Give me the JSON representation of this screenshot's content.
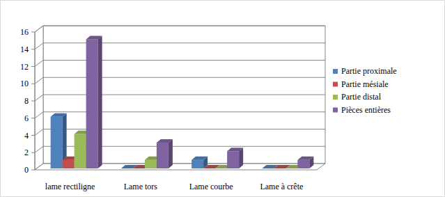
{
  "chart_data": {
    "type": "bar",
    "categories": [
      "lame rectiligne",
      "Lame tors",
      "Lame courbe",
      "Lame à crête"
    ],
    "series": [
      {
        "name": "Partie proximale",
        "color": "#4f81bd",
        "values": [
          6,
          0,
          1,
          0
        ]
      },
      {
        "name": "Partie mésiale",
        "color": "#c0504d",
        "values": [
          1,
          0,
          0,
          0
        ]
      },
      {
        "name": "Partie distal",
        "color": "#9bbb59",
        "values": [
          4,
          1,
          0,
          0
        ]
      },
      {
        "name": "Pièces entières",
        "color": "#8064a2",
        "values": [
          15,
          3,
          2,
          1
        ]
      }
    ],
    "ylim": [
      0,
      16
    ],
    "yticks": [
      0,
      2,
      4,
      6,
      8,
      10,
      12,
      14,
      16
    ],
    "grid": true,
    "legend": "right"
  }
}
